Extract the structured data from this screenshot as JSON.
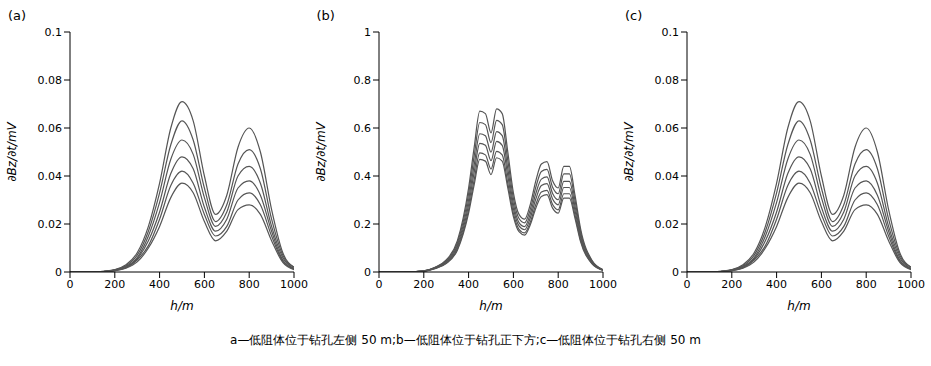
{
  "chart_data": [
    {
      "type": "line",
      "title": "(a)",
      "x_label": "h/m",
      "y_label": "∂Bz/∂t/mV",
      "x": [
        0,
        50,
        100,
        150,
        200,
        250,
        300,
        350,
        400,
        450,
        500,
        550,
        600,
        650,
        700,
        750,
        800,
        850,
        900,
        950,
        1000
      ],
      "xlim": [
        0,
        1000
      ],
      "xticks": [
        0,
        200,
        400,
        600,
        800,
        1000
      ],
      "ylim": [
        0,
        0.1
      ],
      "yticks": [
        0,
        0.02,
        0.04,
        0.06,
        0.08,
        0.1
      ],
      "series": [
        {
          "color": "#555555",
          "values": [
            0,
            0,
            0,
            0.0003,
            0.001,
            0.003,
            0.008,
            0.019,
            0.037,
            0.06,
            0.071,
            0.063,
            0.04,
            0.024,
            0.032,
            0.052,
            0.06,
            0.05,
            0.026,
            0.008,
            0.002
          ]
        },
        {
          "color": "#555555",
          "values": [
            0,
            0,
            0,
            0.0003,
            0.0009,
            0.0026,
            0.007,
            0.017,
            0.033,
            0.053,
            0.063,
            0.055,
            0.035,
            0.021,
            0.028,
            0.045,
            0.051,
            0.043,
            0.022,
            0.007,
            0.002
          ]
        },
        {
          "color": "#555555",
          "values": [
            0,
            0,
            0,
            0.0002,
            0.0008,
            0.0023,
            0.006,
            0.015,
            0.029,
            0.047,
            0.055,
            0.049,
            0.031,
            0.019,
            0.025,
            0.04,
            0.044,
            0.037,
            0.019,
            0.006,
            0.0015
          ]
        },
        {
          "color": "#555555",
          "values": [
            0,
            0,
            0,
            0.0002,
            0.0007,
            0.002,
            0.0055,
            0.013,
            0.025,
            0.041,
            0.048,
            0.043,
            0.027,
            0.017,
            0.022,
            0.035,
            0.038,
            0.032,
            0.017,
            0.005,
            0.0013
          ]
        },
        {
          "color": "#555555",
          "values": [
            0,
            0,
            0,
            0.0002,
            0.0006,
            0.0018,
            0.005,
            0.011,
            0.022,
            0.036,
            0.042,
            0.037,
            0.024,
            0.015,
            0.019,
            0.03,
            0.033,
            0.028,
            0.015,
            0.0045,
            0.0012
          ]
        },
        {
          "color": "#555555",
          "values": [
            0,
            0,
            0,
            0.0001,
            0.0005,
            0.0016,
            0.0042,
            0.01,
            0.019,
            0.031,
            0.037,
            0.033,
            0.021,
            0.013,
            0.017,
            0.026,
            0.028,
            0.024,
            0.013,
            0.004,
            0.001
          ]
        }
      ]
    },
    {
      "type": "line",
      "title": "(b)",
      "x_label": "h/m",
      "y_label": "∂Bz/∂t/mV",
      "x": [
        0,
        100,
        200,
        250,
        300,
        350,
        400,
        425,
        450,
        475,
        500,
        525,
        550,
        575,
        600,
        625,
        650,
        675,
        700,
        725,
        750,
        775,
        800,
        825,
        850,
        875,
        900,
        950,
        1000
      ],
      "xlim": [
        0,
        1000
      ],
      "xticks": [
        0,
        200,
        400,
        600,
        800,
        1000
      ],
      "ylim": [
        0,
        1
      ],
      "yticks": [
        0,
        0.2,
        0.4,
        0.6,
        0.8,
        1
      ],
      "series": [
        {
          "color": "#555555",
          "values": [
            0,
            0,
            0.005,
            0.02,
            0.05,
            0.13,
            0.35,
            0.52,
            0.67,
            0.66,
            0.58,
            0.68,
            0.66,
            0.5,
            0.33,
            0.24,
            0.22,
            0.28,
            0.38,
            0.45,
            0.46,
            0.38,
            0.35,
            0.44,
            0.44,
            0.32,
            0.18,
            0.05,
            0.01
          ]
        },
        {
          "color": "#555555",
          "values": [
            0,
            0,
            0.005,
            0.019,
            0.047,
            0.121,
            0.326,
            0.484,
            0.623,
            0.614,
            0.539,
            0.632,
            0.614,
            0.465,
            0.307,
            0.223,
            0.205,
            0.26,
            0.353,
            0.419,
            0.428,
            0.353,
            0.326,
            0.409,
            0.409,
            0.298,
            0.167,
            0.047,
            0.009
          ]
        },
        {
          "color": "#555555",
          "values": [
            0,
            0,
            0.004,
            0.017,
            0.043,
            0.112,
            0.301,
            0.447,
            0.576,
            0.568,
            0.499,
            0.585,
            0.568,
            0.43,
            0.284,
            0.206,
            0.189,
            0.241,
            0.327,
            0.387,
            0.396,
            0.327,
            0.301,
            0.378,
            0.378,
            0.275,
            0.155,
            0.043,
            0.009
          ]
        },
        {
          "color": "#555555",
          "values": [
            0,
            0,
            0.004,
            0.016,
            0.04,
            0.104,
            0.28,
            0.416,
            0.536,
            0.528,
            0.464,
            0.544,
            0.528,
            0.4,
            0.264,
            0.192,
            0.176,
            0.224,
            0.304,
            0.36,
            0.368,
            0.304,
            0.28,
            0.352,
            0.352,
            0.256,
            0.144,
            0.04,
            0.008
          ]
        },
        {
          "color": "#555555",
          "values": [
            0,
            0,
            0.004,
            0.015,
            0.037,
            0.096,
            0.259,
            0.385,
            0.496,
            0.488,
            0.429,
            0.503,
            0.488,
            0.37,
            0.244,
            0.178,
            0.163,
            0.207,
            0.281,
            0.333,
            0.34,
            0.281,
            0.259,
            0.326,
            0.326,
            0.237,
            0.133,
            0.037,
            0.007
          ]
        },
        {
          "color": "#555555",
          "values": [
            0,
            0,
            0.0035,
            0.014,
            0.035,
            0.091,
            0.245,
            0.364,
            0.469,
            0.462,
            0.406,
            0.476,
            0.462,
            0.35,
            0.231,
            0.168,
            0.154,
            0.196,
            0.266,
            0.315,
            0.322,
            0.266,
            0.245,
            0.308,
            0.308,
            0.224,
            0.126,
            0.035,
            0.007
          ]
        }
      ]
    },
    {
      "type": "line",
      "title": "(c)",
      "x_label": "h/m",
      "y_label": "∂Bz/∂t/mV",
      "x": [
        0,
        50,
        100,
        150,
        200,
        250,
        300,
        350,
        400,
        450,
        500,
        550,
        600,
        650,
        700,
        750,
        800,
        850,
        900,
        950,
        1000
      ],
      "xlim": [
        0,
        1000
      ],
      "xticks": [
        0,
        200,
        400,
        600,
        800,
        1000
      ],
      "ylim": [
        0,
        0.1
      ],
      "yticks": [
        0,
        0.02,
        0.04,
        0.06,
        0.08,
        0.1
      ],
      "series": [
        {
          "color": "#555555",
          "values": [
            0,
            0,
            0,
            0.0003,
            0.001,
            0.003,
            0.008,
            0.019,
            0.037,
            0.06,
            0.071,
            0.063,
            0.04,
            0.024,
            0.032,
            0.052,
            0.06,
            0.05,
            0.026,
            0.008,
            0.002
          ]
        },
        {
          "color": "#555555",
          "values": [
            0,
            0,
            0,
            0.0003,
            0.0009,
            0.0026,
            0.007,
            0.017,
            0.033,
            0.053,
            0.063,
            0.055,
            0.035,
            0.021,
            0.028,
            0.045,
            0.051,
            0.043,
            0.022,
            0.007,
            0.002
          ]
        },
        {
          "color": "#555555",
          "values": [
            0,
            0,
            0,
            0.0002,
            0.0008,
            0.0023,
            0.006,
            0.015,
            0.029,
            0.047,
            0.055,
            0.049,
            0.031,
            0.019,
            0.025,
            0.04,
            0.044,
            0.037,
            0.019,
            0.006,
            0.0015
          ]
        },
        {
          "color": "#555555",
          "values": [
            0,
            0,
            0,
            0.0002,
            0.0007,
            0.002,
            0.0055,
            0.013,
            0.025,
            0.041,
            0.048,
            0.043,
            0.027,
            0.017,
            0.022,
            0.035,
            0.038,
            0.032,
            0.017,
            0.005,
            0.0013
          ]
        },
        {
          "color": "#555555",
          "values": [
            0,
            0,
            0,
            0.0002,
            0.0006,
            0.0018,
            0.005,
            0.011,
            0.022,
            0.036,
            0.042,
            0.037,
            0.024,
            0.015,
            0.019,
            0.03,
            0.033,
            0.028,
            0.015,
            0.0045,
            0.0012
          ]
        },
        {
          "color": "#555555",
          "values": [
            0,
            0,
            0,
            0.0001,
            0.0005,
            0.0016,
            0.0042,
            0.01,
            0.019,
            0.031,
            0.037,
            0.033,
            0.021,
            0.013,
            0.017,
            0.026,
            0.028,
            0.024,
            0.013,
            0.004,
            0.001
          ]
        }
      ]
    }
  ],
  "caption": "a—低阻体位于钻孔左侧 50 m;b—低阻体位于钻孔正下方;c—低阻体位于钻孔右侧 50 m"
}
